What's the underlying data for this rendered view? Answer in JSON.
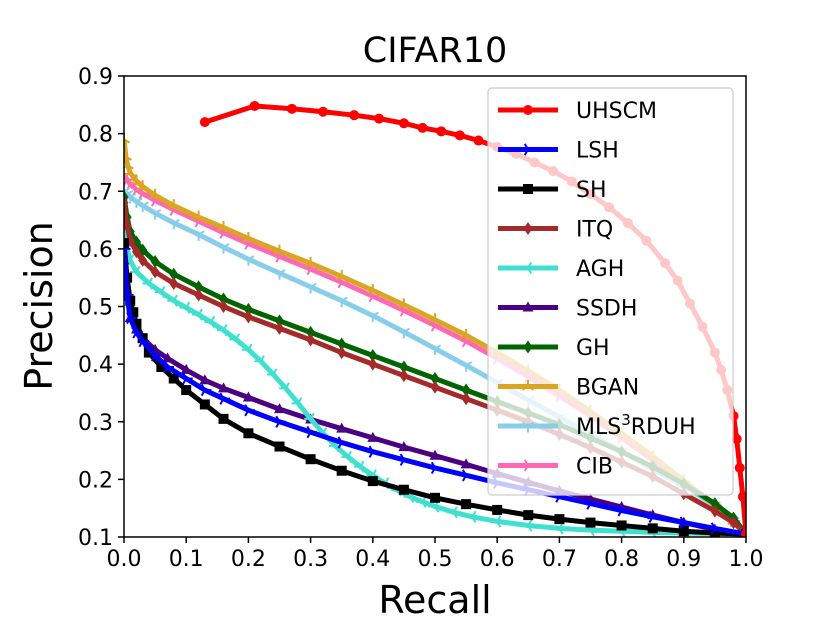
{
  "chart_data": {
    "type": "line",
    "title": "CIFAR10",
    "xlabel": "Recall",
    "ylabel": "Precision",
    "xlim": [
      0.0,
      1.0
    ],
    "ylim": [
      0.1,
      0.9
    ],
    "xticks": [
      "0.0",
      "0.1",
      "0.2",
      "0.3",
      "0.4",
      "0.5",
      "0.6",
      "0.7",
      "0.8",
      "0.9",
      "1.0"
    ],
    "yticks": [
      "0.1",
      "0.2",
      "0.3",
      "0.4",
      "0.5",
      "0.6",
      "0.7",
      "0.8",
      "0.9"
    ],
    "grid": false,
    "legend_position": "upper-right",
    "series": [
      {
        "name": "UHSCM",
        "label_base": "UHSCM",
        "label_sup": "",
        "label_tail": "",
        "color": "#ff0000",
        "marker": "circle",
        "x": [
          0.13,
          0.21,
          0.27,
          0.32,
          0.37,
          0.41,
          0.45,
          0.48,
          0.51,
          0.54,
          0.57,
          0.6,
          0.63,
          0.66,
          0.69,
          0.72,
          0.75,
          0.78,
          0.81,
          0.84,
          0.87,
          0.89,
          0.91,
          0.93,
          0.95,
          0.96,
          0.97,
          0.98,
          0.985,
          0.99,
          0.995,
          1.0
        ],
        "y": [
          0.82,
          0.848,
          0.843,
          0.838,
          0.832,
          0.826,
          0.818,
          0.81,
          0.804,
          0.797,
          0.788,
          0.777,
          0.765,
          0.75,
          0.735,
          0.717,
          0.695,
          0.672,
          0.645,
          0.614,
          0.575,
          0.545,
          0.505,
          0.465,
          0.42,
          0.39,
          0.355,
          0.31,
          0.27,
          0.22,
          0.17,
          0.105
        ]
      },
      {
        "name": "LSH",
        "label_base": "LSH",
        "label_sup": "",
        "label_tail": "",
        "color": "#0000ff",
        "marker": "tri_right",
        "x": [
          0.0,
          0.005,
          0.01,
          0.02,
          0.03,
          0.05,
          0.07,
          0.1,
          0.13,
          0.16,
          0.2,
          0.25,
          0.3,
          0.35,
          0.4,
          0.45,
          0.5,
          0.55,
          0.6,
          0.65,
          0.7,
          0.75,
          0.8,
          0.85,
          0.9,
          0.95,
          1.0
        ],
        "y": [
          0.6,
          0.52,
          0.48,
          0.455,
          0.44,
          0.415,
          0.395,
          0.375,
          0.355,
          0.34,
          0.32,
          0.3,
          0.282,
          0.264,
          0.248,
          0.234,
          0.22,
          0.207,
          0.194,
          0.182,
          0.17,
          0.158,
          0.146,
          0.135,
          0.125,
          0.115,
          0.105
        ]
      },
      {
        "name": "SH",
        "label_base": "SH",
        "label_sup": "",
        "label_tail": "",
        "color": "#000000",
        "marker": "square",
        "x": [
          0.0,
          0.005,
          0.01,
          0.015,
          0.02,
          0.03,
          0.04,
          0.06,
          0.08,
          0.1,
          0.13,
          0.16,
          0.2,
          0.25,
          0.3,
          0.35,
          0.4,
          0.45,
          0.5,
          0.55,
          0.6,
          0.65,
          0.7,
          0.75,
          0.8,
          0.85,
          0.9,
          0.95,
          1.0
        ],
        "y": [
          0.61,
          0.55,
          0.51,
          0.49,
          0.47,
          0.445,
          0.42,
          0.395,
          0.375,
          0.355,
          0.33,
          0.305,
          0.28,
          0.257,
          0.235,
          0.215,
          0.197,
          0.182,
          0.168,
          0.157,
          0.147,
          0.138,
          0.131,
          0.125,
          0.12,
          0.115,
          0.11,
          0.107,
          0.105
        ]
      },
      {
        "name": "ITQ",
        "label_base": "ITQ",
        "label_sup": "",
        "label_tail": "",
        "color": "#a52a2a",
        "marker": "diamond",
        "x": [
          0.0,
          0.005,
          0.01,
          0.02,
          0.03,
          0.05,
          0.08,
          0.12,
          0.16,
          0.2,
          0.25,
          0.3,
          0.35,
          0.4,
          0.45,
          0.5,
          0.55,
          0.6,
          0.65,
          0.7,
          0.75,
          0.8,
          0.85,
          0.9,
          0.95,
          0.98,
          1.0
        ],
        "y": [
          0.68,
          0.64,
          0.615,
          0.595,
          0.58,
          0.56,
          0.54,
          0.52,
          0.5,
          0.482,
          0.462,
          0.442,
          0.42,
          0.4,
          0.38,
          0.36,
          0.34,
          0.32,
          0.3,
          0.278,
          0.255,
          0.23,
          0.205,
          0.175,
          0.145,
          0.125,
          0.105
        ]
      },
      {
        "name": "AGH",
        "label_base": "AGH",
        "label_sup": "",
        "label_tail": "",
        "color": "#40e0d0",
        "marker": "tri_left",
        "x": [
          0.0,
          0.005,
          0.01,
          0.02,
          0.04,
          0.06,
          0.08,
          0.1,
          0.12,
          0.14,
          0.16,
          0.18,
          0.2,
          0.22,
          0.24,
          0.26,
          0.28,
          0.3,
          0.32,
          0.34,
          0.36,
          0.38,
          0.4,
          0.42,
          0.44,
          0.46,
          0.48,
          0.5,
          0.53,
          0.56,
          0.6,
          0.65,
          0.7,
          0.75,
          0.8,
          0.85,
          0.9,
          0.95,
          1.0
        ],
        "y": [
          0.63,
          0.6,
          0.58,
          0.56,
          0.54,
          0.525,
          0.51,
          0.498,
          0.486,
          0.473,
          0.459,
          0.443,
          0.425,
          0.405,
          0.382,
          0.358,
          0.332,
          0.305,
          0.28,
          0.258,
          0.239,
          0.222,
          0.207,
          0.193,
          0.181,
          0.17,
          0.161,
          0.153,
          0.143,
          0.135,
          0.127,
          0.12,
          0.115,
          0.112,
          0.11,
          0.108,
          0.107,
          0.106,
          0.105
        ]
      },
      {
        "name": "SSDH",
        "label_base": "SSDH",
        "label_sup": "",
        "label_tail": "",
        "color": "#4b0082",
        "marker": "triangle",
        "x": [
          0.0,
          0.005,
          0.01,
          0.02,
          0.03,
          0.05,
          0.07,
          0.1,
          0.13,
          0.16,
          0.2,
          0.25,
          0.3,
          0.35,
          0.4,
          0.45,
          0.5,
          0.55,
          0.6,
          0.65,
          0.7,
          0.75,
          0.8,
          0.85,
          0.9,
          0.95,
          1.0
        ],
        "y": [
          0.58,
          0.52,
          0.48,
          0.46,
          0.445,
          0.425,
          0.41,
          0.39,
          0.372,
          0.358,
          0.342,
          0.322,
          0.304,
          0.288,
          0.272,
          0.256,
          0.241,
          0.226,
          0.21,
          0.195,
          0.18,
          0.166,
          0.152,
          0.138,
          0.125,
          0.113,
          0.105
        ]
      },
      {
        "name": "GH",
        "label_base": "GH",
        "label_sup": "",
        "label_tail": "",
        "color": "#006400",
        "marker": "diamond",
        "x": [
          0.0,
          0.005,
          0.01,
          0.02,
          0.03,
          0.05,
          0.08,
          0.12,
          0.16,
          0.2,
          0.25,
          0.3,
          0.35,
          0.4,
          0.45,
          0.5,
          0.55,
          0.6,
          0.65,
          0.7,
          0.75,
          0.8,
          0.85,
          0.9,
          0.95,
          0.98,
          1.0
        ],
        "y": [
          0.69,
          0.655,
          0.63,
          0.612,
          0.598,
          0.578,
          0.556,
          0.534,
          0.513,
          0.495,
          0.475,
          0.455,
          0.435,
          0.415,
          0.395,
          0.375,
          0.355,
          0.335,
          0.315,
          0.295,
          0.272,
          0.248,
          0.222,
          0.192,
          0.158,
          0.133,
          0.105
        ]
      },
      {
        "name": "BGAN",
        "label_base": "BGAN",
        "label_sup": "",
        "label_tail": "",
        "color": "#daa520",
        "marker": "tri_up",
        "x": [
          0.0,
          0.003,
          0.006,
          0.01,
          0.02,
          0.03,
          0.05,
          0.08,
          0.12,
          0.16,
          0.2,
          0.25,
          0.3,
          0.35,
          0.4,
          0.45,
          0.5,
          0.55,
          0.6,
          0.65,
          0.7,
          0.75,
          0.8,
          0.85,
          0.9,
          0.95,
          0.98,
          1.0
        ],
        "y": [
          0.79,
          0.76,
          0.745,
          0.732,
          0.718,
          0.708,
          0.693,
          0.675,
          0.655,
          0.637,
          0.618,
          0.596,
          0.575,
          0.552,
          0.528,
          0.503,
          0.477,
          0.45,
          0.42,
          0.388,
          0.355,
          0.318,
          0.28,
          0.24,
          0.198,
          0.155,
          0.128,
          0.105
        ]
      },
      {
        "name": "MLS3RDUH",
        "label_base": "MLS",
        "label_sup": "3",
        "label_tail": "RDUH",
        "color": "#87ceeb",
        "marker": "tri_down",
        "x": [
          0.0,
          0.005,
          0.01,
          0.02,
          0.03,
          0.05,
          0.08,
          0.12,
          0.16,
          0.2,
          0.25,
          0.3,
          0.35,
          0.4,
          0.45,
          0.5,
          0.55,
          0.6,
          0.65,
          0.7,
          0.75,
          0.8,
          0.85,
          0.9,
          0.95,
          0.98,
          1.0
        ],
        "y": [
          0.7,
          0.695,
          0.69,
          0.682,
          0.675,
          0.662,
          0.645,
          0.625,
          0.603,
          0.582,
          0.558,
          0.534,
          0.51,
          0.484,
          0.456,
          0.427,
          0.398,
          0.368,
          0.338,
          0.308,
          0.278,
          0.248,
          0.218,
          0.188,
          0.155,
          0.128,
          0.105
        ]
      },
      {
        "name": "CIB",
        "label_base": "CIB",
        "label_sup": "",
        "label_tail": "",
        "color": "#ff69b4",
        "marker": "tri_right",
        "x": [
          0.0,
          0.005,
          0.01,
          0.02,
          0.03,
          0.05,
          0.08,
          0.12,
          0.16,
          0.2,
          0.25,
          0.3,
          0.35,
          0.4,
          0.45,
          0.5,
          0.55,
          0.6,
          0.65,
          0.7,
          0.75,
          0.8,
          0.85,
          0.9,
          0.95,
          0.98,
          1.0
        ],
        "y": [
          0.73,
          0.72,
          0.712,
          0.703,
          0.696,
          0.684,
          0.668,
          0.648,
          0.628,
          0.609,
          0.587,
          0.565,
          0.542,
          0.518,
          0.493,
          0.467,
          0.44,
          0.41,
          0.378,
          0.345,
          0.31,
          0.272,
          0.234,
          0.195,
          0.155,
          0.128,
          0.105
        ]
      }
    ]
  }
}
